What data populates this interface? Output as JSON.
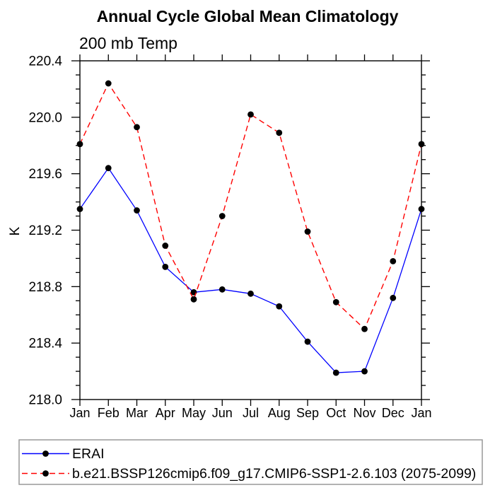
{
  "colors": {
    "background": "#ffffff",
    "axis": "#000000",
    "marker": "#000000",
    "erai_line": "#0000ff",
    "model_line": "#ff0000",
    "legend_border": "#999999"
  },
  "chart_data": {
    "type": "line",
    "title": "Annual Cycle Global Mean Climatology",
    "subtitle": "200 mb Temp",
    "ylabel": "K",
    "xlabel": "",
    "grid": false,
    "ylim": [
      218.0,
      220.4
    ],
    "ytick_major": 0.4,
    "ytick_minor": 0.1,
    "ytick_labels": [
      "218.0",
      "218.4",
      "218.8",
      "219.2",
      "219.6",
      "220.0",
      "220.4"
    ],
    "x_categories": [
      "Jan",
      "Feb",
      "Mar",
      "Apr",
      "May",
      "Jun",
      "Jul",
      "Aug",
      "Sep",
      "Oct",
      "Nov",
      "Dec",
      "Jan"
    ],
    "legend_position": "bottom-left-box",
    "series": [
      {
        "name": "ERAI",
        "color": "#0000ff",
        "style": "solid",
        "marker": "filled-circle",
        "marker_color": "#000000",
        "values": [
          219.35,
          219.64,
          219.34,
          218.94,
          218.76,
          218.78,
          218.75,
          218.66,
          218.41,
          218.19,
          218.2,
          218.72,
          219.35
        ]
      },
      {
        "name": "b.e21.BSSP126cmip6.f09_g17.CMIP6-SSP1-2.6.103 (2075-2099)",
        "color": "#ff0000",
        "style": "dashed",
        "marker": "filled-circle",
        "marker_color": "#000000",
        "values": [
          219.81,
          220.24,
          219.93,
          219.09,
          218.71,
          219.3,
          220.02,
          219.89,
          219.19,
          218.69,
          218.5,
          218.98,
          219.81
        ]
      }
    ]
  }
}
